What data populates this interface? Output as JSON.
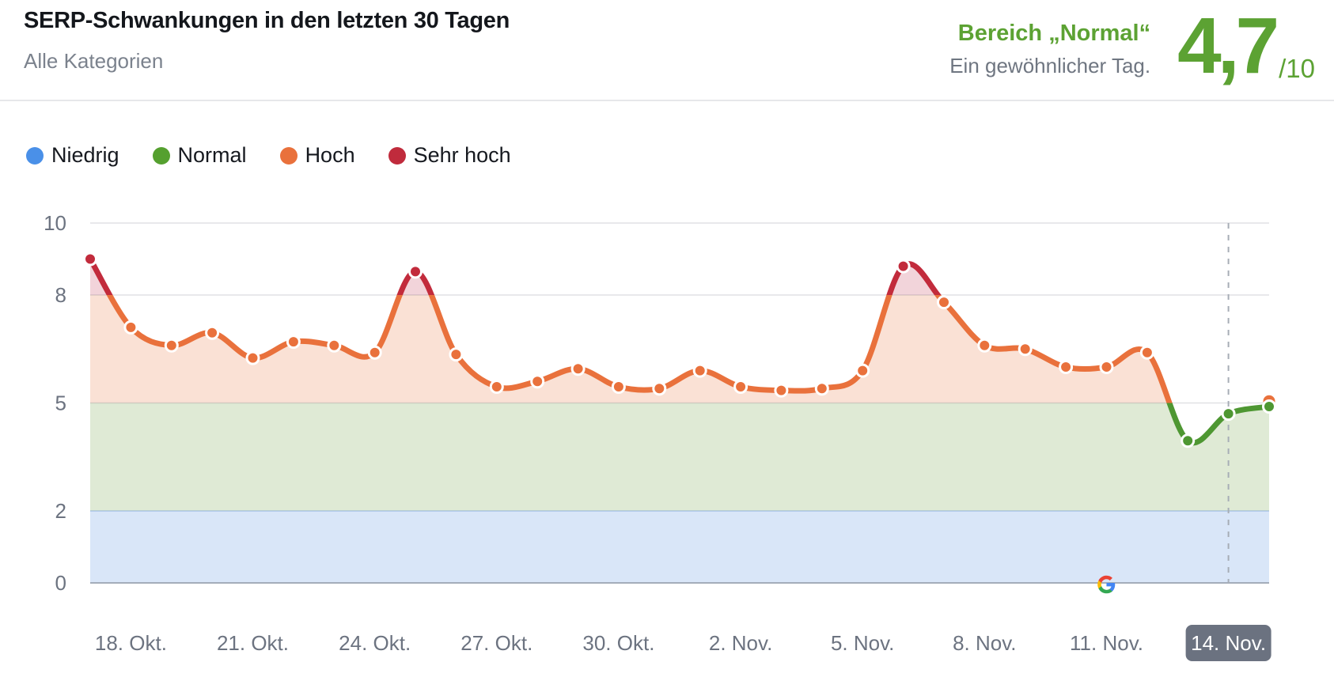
{
  "header": {
    "title": "SERP-Schwankungen in den letzten 30 Tagen",
    "subtitle": "Alle Kategorien"
  },
  "score": {
    "range_label": "Bereich „Normal“",
    "description": "Ein gewöhnlicher Tag.",
    "value": "4,7",
    "denominator": "/10",
    "color": "#5ca233"
  },
  "legend": {
    "items": [
      {
        "label": "Niedrig",
        "color": "#4a90e8"
      },
      {
        "label": "Normal",
        "color": "#55a02f"
      },
      {
        "label": "Hoch",
        "color": "#e9713c"
      },
      {
        "label": "Sehr hoch",
        "color": "#c02b3c"
      }
    ]
  },
  "chart_data": {
    "type": "area",
    "title": "SERP-Schwankungen in den letzten 30 Tagen",
    "ylim": [
      0,
      10
    ],
    "y_ticks": [
      0,
      2,
      5,
      8,
      10
    ],
    "values": [
      9.0,
      7.1,
      6.6,
      6.95,
      6.25,
      6.7,
      6.6,
      6.4,
      8.65,
      6.35,
      5.45,
      5.6,
      5.95,
      5.45,
      5.4,
      5.9,
      5.45,
      5.35,
      5.4,
      5.9,
      8.8,
      7.8,
      6.6,
      6.5,
      6.0,
      6.0,
      6.4,
      3.95,
      4.7,
      4.9
    ],
    "x_tick_labels": [
      "18. Okt.",
      "21. Okt.",
      "24. Okt.",
      "27. Okt.",
      "30. Okt.",
      "2. Nov.",
      "5. Nov.",
      "8. Nov.",
      "11. Nov.",
      "14. Nov."
    ],
    "x_tick_indices": [
      1,
      4,
      7,
      10,
      13,
      16,
      19,
      22,
      25,
      28
    ],
    "highlighted_tick": "14. Nov.",
    "dashed_line_index": 28,
    "google_logo_index": 25,
    "overlap_point": {
      "index": 29,
      "value": 5.05
    },
    "bands": [
      {
        "from": 0,
        "to": 2,
        "label": "Niedrig",
        "line": "#4a90e8",
        "fill": "#d9e6f8"
      },
      {
        "from": 2,
        "to": 5,
        "label": "Normal",
        "line": "#4e9732",
        "fill": "#dfead5"
      },
      {
        "from": 5,
        "to": 8,
        "label": "Hoch",
        "line": "#e9713c",
        "fill": "#fae1d5"
      },
      {
        "from": 8,
        "to": 10,
        "label": "Sehr hoch",
        "line": "#c22b3c",
        "fill": "#f2d4da"
      }
    ],
    "grid": true,
    "legend_position": "top-left"
  }
}
